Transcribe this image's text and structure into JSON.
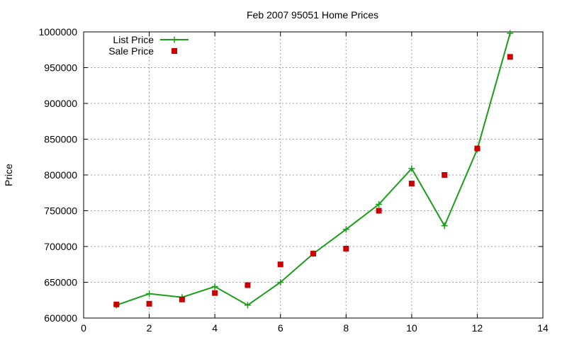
{
  "chart_data": {
    "type": "line",
    "title": "Feb 2007 95051 Home Prices",
    "xlabel": "",
    "ylabel": "Price",
    "xlim": [
      0,
      14
    ],
    "ylim": [
      600000,
      1000000
    ],
    "x_ticks": [
      0,
      2,
      4,
      6,
      8,
      10,
      12,
      14
    ],
    "y_ticks": [
      600000,
      650000,
      700000,
      750000,
      800000,
      850000,
      900000,
      950000,
      1000000
    ],
    "grid": true,
    "legend_position": "top-left",
    "series": [
      {
        "name": "List Price",
        "style": "line+points",
        "marker": "plus",
        "color": "#1a9e1a",
        "x": [
          1,
          2,
          3,
          4,
          5,
          6,
          7,
          8,
          9,
          10,
          11,
          12,
          13
        ],
        "values": [
          618000,
          634000,
          629000,
          644000,
          618000,
          650000,
          690000,
          724000,
          759000,
          809000,
          729000,
          836000,
          998000
        ]
      },
      {
        "name": "Sale Price",
        "style": "points",
        "marker": "square",
        "color": "#cc0000",
        "x": [
          1,
          2,
          3,
          4,
          5,
          6,
          7,
          8,
          9,
          10,
          11,
          12,
          13
        ],
        "values": [
          619000,
          620000,
          626000,
          635000,
          646000,
          675000,
          690000,
          697000,
          750000,
          788000,
          800000,
          837000,
          965000
        ]
      }
    ]
  }
}
